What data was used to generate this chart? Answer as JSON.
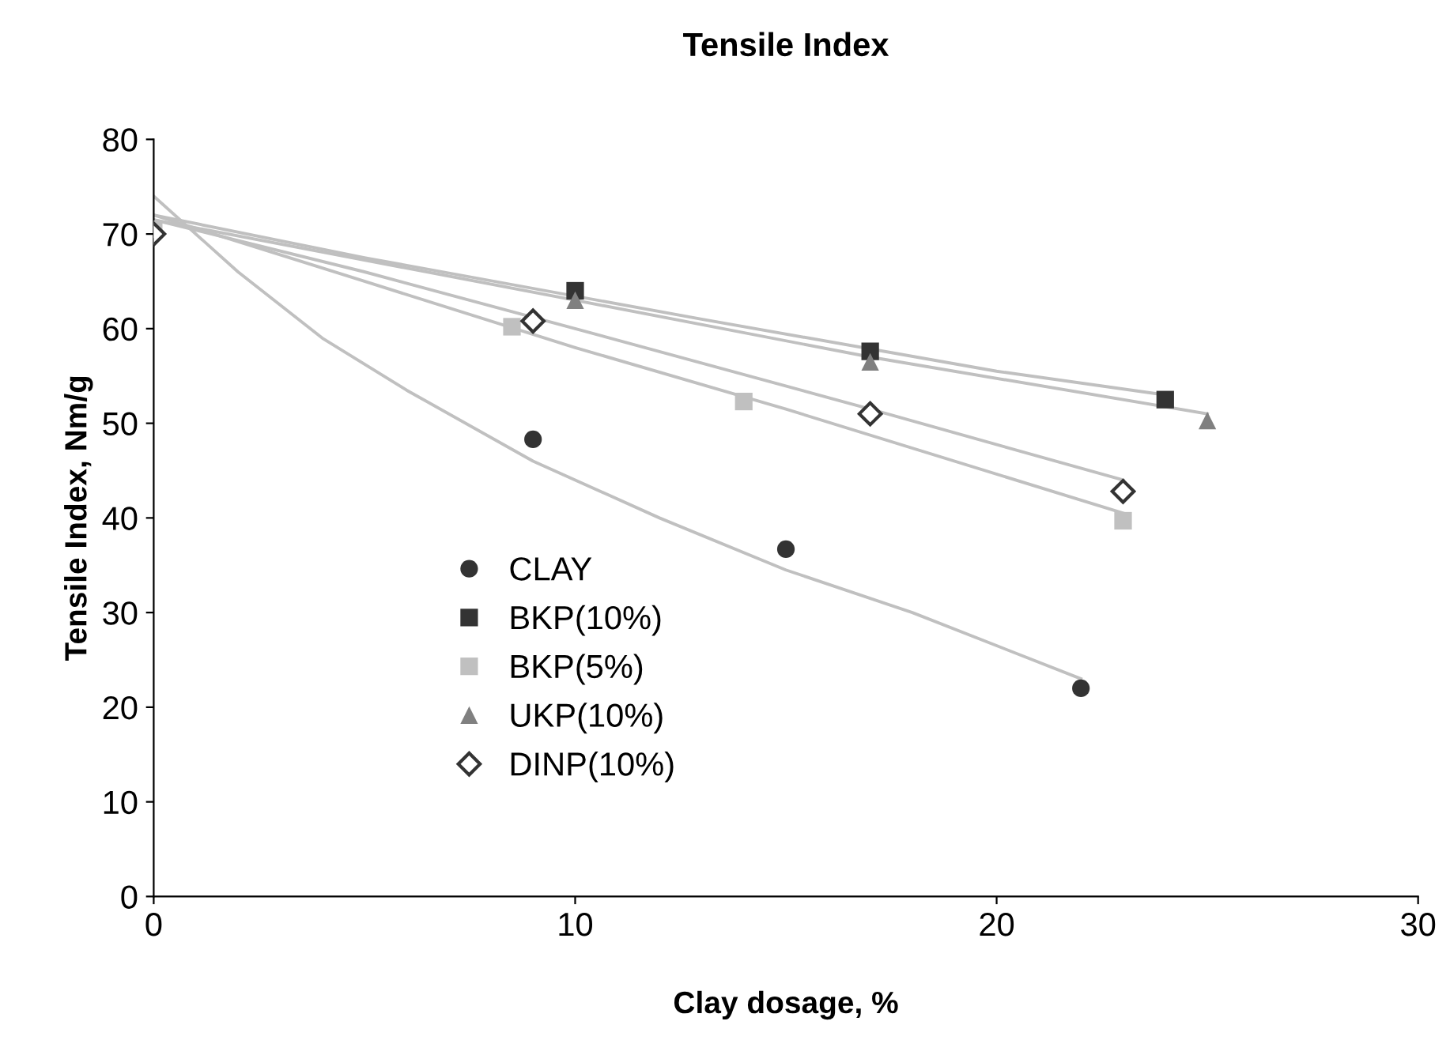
{
  "chart_data": {
    "type": "scatter",
    "title": "Tensile Index",
    "xlabel": "Clay dosage, %",
    "ylabel": "Tensile Index, Nm/g",
    "xlim": [
      0,
      30
    ],
    "xticks": [
      0,
      10,
      20,
      30
    ],
    "ylim": [
      0,
      80
    ],
    "yticks": [
      0,
      10,
      20,
      30,
      40,
      50,
      60,
      70,
      80
    ],
    "grid": false,
    "legend": "left",
    "series": [
      {
        "type": "line",
        "color": "#c0c0c0",
        "marker": "none",
        "x": [
          0,
          2,
          4,
          6,
          9,
          12,
          15,
          18,
          20,
          22
        ],
        "values": [
          74,
          66,
          59,
          53.5,
          46,
          40,
          34.5,
          30,
          26.5,
          23
        ]
      },
      {
        "type": "line",
        "color": "#c0c0c0",
        "marker": "none",
        "x": [
          0,
          5,
          13,
          20,
          24
        ],
        "values": [
          72,
          67.5,
          61,
          55.5,
          53
        ]
      },
      {
        "type": "line",
        "color": "#c0c0c0",
        "marker": "none",
        "x": [
          0,
          5,
          10,
          15,
          23
        ],
        "values": [
          72,
          65,
          58,
          51.5,
          40.5
        ]
      },
      {
        "type": "line",
        "color": "#c0c0c0",
        "marker": "none",
        "x": [
          0,
          10,
          17,
          25
        ],
        "values": [
          71.5,
          63,
          57,
          51
        ]
      },
      {
        "type": "line",
        "color": "#c0c0c0",
        "marker": "none",
        "x": [
          0,
          5,
          10,
          17,
          23
        ],
        "values": [
          71.5,
          66,
          60,
          51.5,
          44
        ]
      },
      {
        "name": "CLAY",
        "color": "#333333",
        "marker": "circle",
        "x": [
          9,
          15,
          22
        ],
        "values": [
          48.3,
          36.7,
          22
        ]
      },
      {
        "name": "BKP(10%)",
        "color": "#333333",
        "marker": "square",
        "x": [
          10,
          17,
          24
        ],
        "values": [
          64,
          57.6,
          52.5
        ]
      },
      {
        "name": "BKP(5%)",
        "color": "#c0c0c0",
        "marker": "square",
        "x": [
          0,
          8.5,
          14,
          23
        ],
        "values": [
          70.5,
          60.2,
          52.3,
          39.7
        ]
      },
      {
        "name": "UKP(10%)",
        "color": "#808080",
        "marker": "triangle",
        "x": [
          10,
          17,
          25
        ],
        "values": [
          63,
          56.5,
          50.3
        ]
      },
      {
        "name": "DINP(10%)",
        "color": "#333333",
        "marker": "diamond",
        "x": [
          0,
          9,
          17,
          23
        ],
        "values": [
          70,
          60.8,
          51,
          42.8
        ]
      }
    ]
  }
}
